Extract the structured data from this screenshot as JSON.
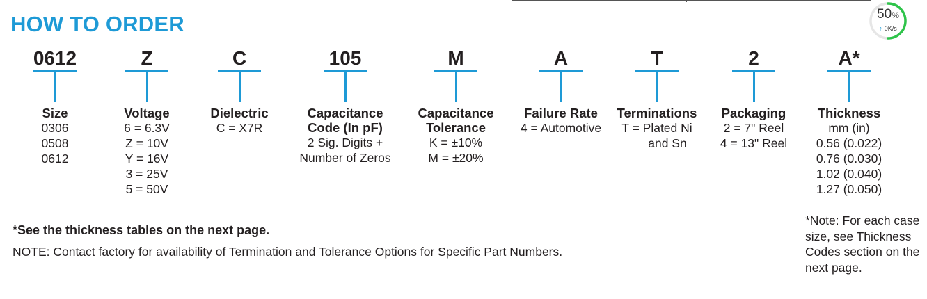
{
  "title": "HOW TO ORDER",
  "columns": [
    {
      "code": "0612",
      "heading": [
        "Size"
      ],
      "lines": [
        "0306",
        "0508",
        "0612"
      ]
    },
    {
      "code": "Z",
      "heading": [
        "Voltage"
      ],
      "lines": [
        "6 = 6.3V",
        "Z = 10V",
        "Y = 16V",
        "3 = 25V",
        "5 = 50V"
      ]
    },
    {
      "code": "C",
      "heading": [
        "Dielectric"
      ],
      "lines": [
        "C = X7R"
      ]
    },
    {
      "code": "105",
      "heading": [
        "Capacitance",
        "Code (In pF)"
      ],
      "lines": [
        "2 Sig. Digits +",
        "Number of Zeros"
      ]
    },
    {
      "code": "M",
      "heading": [
        "Capacitance",
        "Tolerance"
      ],
      "lines": [
        "K = ±10%",
        "M = ±20%"
      ]
    },
    {
      "code": "A",
      "heading": [
        "Failure Rate"
      ],
      "lines": [
        "4 = Automotive"
      ]
    },
    {
      "code": "T",
      "heading": [
        "Terminations"
      ],
      "lines": [
        "T = Plated Ni",
        "and Sn"
      ]
    },
    {
      "code": "2",
      "heading": [
        "Packaging"
      ],
      "lines": [
        "2 = 7\" Reel",
        "4 = 13\" Reel"
      ]
    },
    {
      "code": "A*",
      "heading": [
        "Thickness"
      ],
      "lines": [
        "mm (in)",
        "0.56 (0.022)",
        "0.76 (0.030)",
        "1.02 (0.040)",
        "1.27 (0.050)"
      ]
    }
  ],
  "footer": {
    "bold_note": "*See the thickness tables on the next page.",
    "note": "NOTE: Contact factory for availability of Termination and Tolerance Options for Specific Part Numbers."
  },
  "side_note": {
    "lines": [
      "*Note: For each case",
      "size, see Thickness",
      "Codes section on the",
      "next page."
    ]
  },
  "gauge": {
    "percent_value": "50",
    "percent_sign": "%",
    "speed": "0K/s",
    "progress": 0.5,
    "accent_color": "#2ec44a",
    "track_color": "#e6e6e6"
  },
  "colors": {
    "accent": "#1e9ad6",
    "text": "#231f20"
  }
}
